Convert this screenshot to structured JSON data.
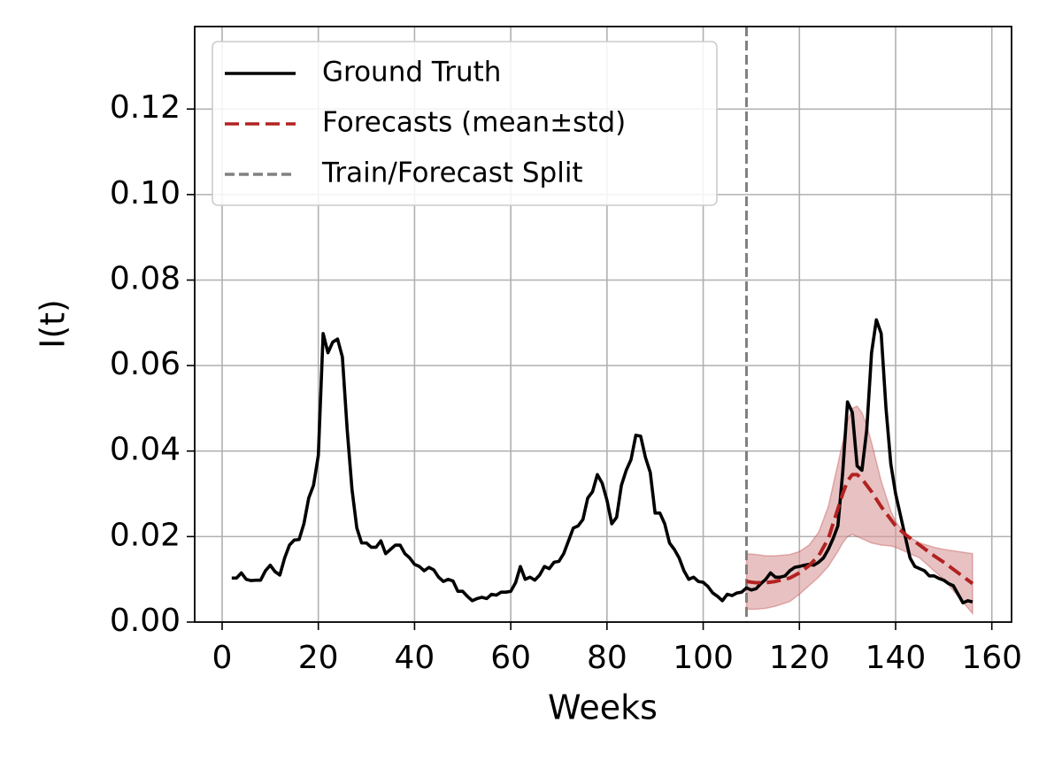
{
  "chart_data": {
    "type": "line",
    "xlabel": "Weeks",
    "ylabel": "I(t)",
    "xlim": [
      -5.7,
      164.1
    ],
    "ylim": [
      0,
      0.1393
    ],
    "xticks": [
      0,
      20,
      40,
      60,
      80,
      100,
      120,
      140,
      160
    ],
    "yticks": [
      {
        "value": 0,
        "label": "0.00"
      },
      {
        "value": 0.02,
        "label": "0.02"
      },
      {
        "value": 0.04,
        "label": "0.04"
      },
      {
        "value": 0.06,
        "label": "0.06"
      },
      {
        "value": 0.08,
        "label": "0.08"
      },
      {
        "value": 0.1,
        "label": "0.10"
      },
      {
        "value": 0.12,
        "label": "0.12"
      }
    ],
    "grid": true,
    "legend": "upper left",
    "series": [
      {
        "name": "Ground Truth",
        "color": "#000000",
        "x": [
          2,
          3,
          4,
          5,
          6,
          7,
          8,
          9,
          10,
          11,
          12,
          13,
          14,
          15,
          16,
          17,
          18,
          19,
          20,
          21,
          22,
          23,
          24,
          25,
          26,
          27,
          28,
          29,
          30,
          31,
          32,
          33,
          34,
          35,
          36,
          37,
          38,
          39,
          40,
          41,
          42,
          43,
          44,
          45,
          46,
          47,
          48,
          49,
          50,
          51,
          52,
          53,
          54,
          55,
          56,
          57,
          58,
          59,
          60,
          61,
          62,
          63,
          64,
          65,
          66,
          67,
          68,
          69,
          70,
          71,
          72,
          73,
          74,
          75,
          76,
          77,
          78,
          79,
          80,
          81,
          82,
          83,
          84,
          85,
          86,
          87,
          88,
          89,
          90,
          91,
          92,
          93,
          94,
          95,
          96,
          97,
          98,
          99,
          100,
          101,
          102,
          103,
          104,
          105,
          106,
          107,
          108,
          109,
          110,
          111,
          112,
          113,
          114,
          115,
          116,
          117,
          118,
          119,
          120,
          121,
          122,
          123,
          124,
          125,
          126,
          127,
          128,
          129,
          130,
          131,
          132,
          133,
          134,
          135,
          136,
          137,
          138,
          139,
          140,
          141,
          142,
          143,
          144,
          145,
          146,
          147,
          148,
          149,
          150,
          151,
          152,
          153,
          154,
          155,
          156
        ],
        "values": [
          0.0103,
          0.0103,
          0.0115,
          0.01,
          0.0097,
          0.0098,
          0.0098,
          0.012,
          0.0133,
          0.0118,
          0.011,
          0.015,
          0.018,
          0.0192,
          0.0193,
          0.023,
          0.029,
          0.032,
          0.039,
          0.0675,
          0.063,
          0.0655,
          0.0662,
          0.062,
          0.045,
          0.031,
          0.022,
          0.0185,
          0.0185,
          0.0175,
          0.0175,
          0.019,
          0.016,
          0.017,
          0.018,
          0.018,
          0.016,
          0.015,
          0.0135,
          0.013,
          0.012,
          0.0128,
          0.0122,
          0.0105,
          0.0095,
          0.01,
          0.0096,
          0.0072,
          0.0072,
          0.006,
          0.005,
          0.0055,
          0.0058,
          0.0055,
          0.0065,
          0.0063,
          0.007,
          0.007,
          0.0072,
          0.0092,
          0.013,
          0.01,
          0.0105,
          0.0098,
          0.011,
          0.013,
          0.0125,
          0.014,
          0.0142,
          0.016,
          0.019,
          0.022,
          0.0225,
          0.024,
          0.029,
          0.0305,
          0.0345,
          0.0325,
          0.0285,
          0.023,
          0.0245,
          0.032,
          0.0355,
          0.038,
          0.0437,
          0.0435,
          0.0385,
          0.035,
          0.0255,
          0.0255,
          0.023,
          0.0185,
          0.017,
          0.015,
          0.012,
          0.01,
          0.0105,
          0.0095,
          0.0093,
          0.0083,
          0.0068,
          0.006,
          0.005,
          0.0065,
          0.0062,
          0.0068,
          0.007,
          0.008,
          0.0075,
          0.0078,
          0.009,
          0.01,
          0.0115,
          0.0105,
          0.0105,
          0.0108,
          0.012,
          0.0128,
          0.013,
          0.0133,
          0.0135,
          0.0133,
          0.014,
          0.015,
          0.017,
          0.0195,
          0.0225,
          0.035,
          0.0515,
          0.049,
          0.0365,
          0.0355,
          0.045,
          0.063,
          0.0707,
          0.0675,
          0.05,
          0.037,
          0.03,
          0.025,
          0.02,
          0.015,
          0.013,
          0.0125,
          0.012,
          0.0108,
          0.0108,
          0.0102,
          0.0098,
          0.009,
          0.0085,
          0.0065,
          0.0045,
          0.005,
          0.0047
        ]
      },
      {
        "name": "Forecasts (mean±std)",
        "color": "#b22222",
        "dashed": true,
        "band_color": "#d89a9a",
        "x": [
          109,
          111,
          113,
          115,
          118,
          120,
          122,
          124,
          126,
          128,
          129,
          130,
          131,
          132,
          133,
          134,
          135,
          137,
          139,
          140,
          142,
          145,
          148,
          150,
          153,
          156
        ],
        "values": [
          0.0095,
          0.0092,
          0.0092,
          0.0095,
          0.0103,
          0.0115,
          0.0132,
          0.0155,
          0.0195,
          0.0265,
          0.03,
          0.033,
          0.0345,
          0.0345,
          0.0335,
          0.032,
          0.0305,
          0.027,
          0.024,
          0.0225,
          0.0205,
          0.018,
          0.0155,
          0.014,
          0.0115,
          0.009
        ],
        "upper": [
          0.016,
          0.0158,
          0.0155,
          0.0155,
          0.0158,
          0.0165,
          0.018,
          0.021,
          0.027,
          0.037,
          0.042,
          0.047,
          0.05,
          0.0505,
          0.049,
          0.046,
          0.042,
          0.033,
          0.026,
          0.0235,
          0.0205,
          0.0185,
          0.0175,
          0.017,
          0.0165,
          0.016
        ],
        "lower": [
          0.003,
          0.003,
          0.0032,
          0.0037,
          0.0048,
          0.0065,
          0.0085,
          0.0105,
          0.013,
          0.0165,
          0.0185,
          0.02,
          0.0205,
          0.02,
          0.0195,
          0.019,
          0.0185,
          0.018,
          0.0178,
          0.0175,
          0.0165,
          0.015,
          0.012,
          0.01,
          0.006,
          0.002
        ]
      }
    ],
    "split": {
      "name": "Train/Forecast Split",
      "x": 109,
      "color": "#808080"
    }
  }
}
